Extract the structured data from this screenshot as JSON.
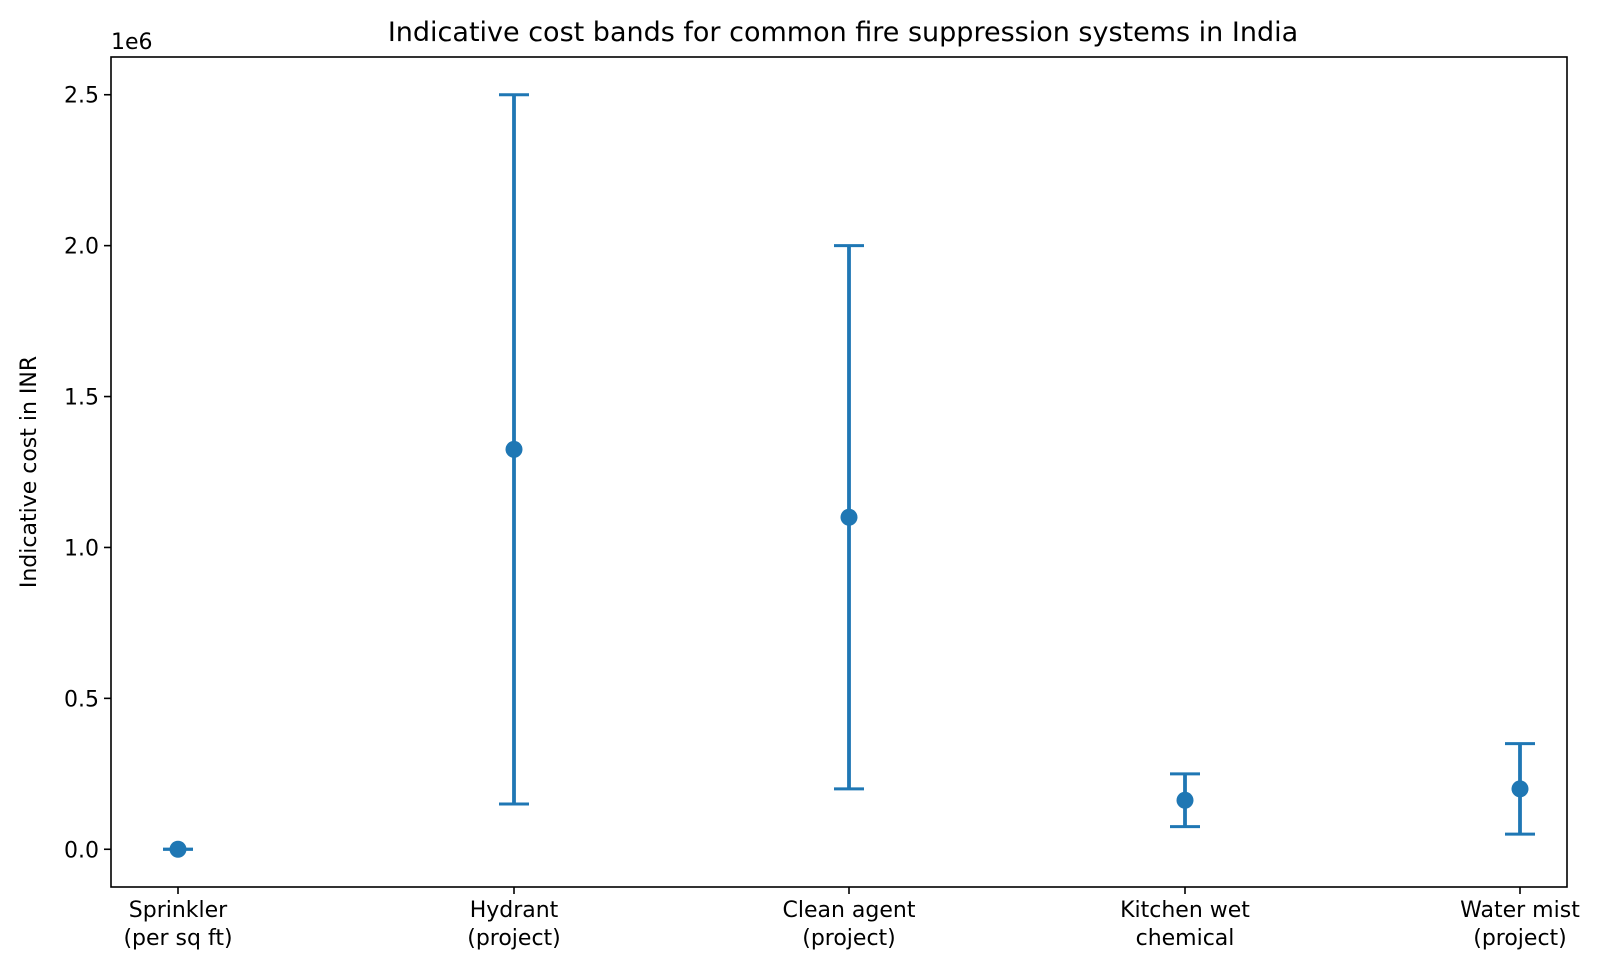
{
  "chart_data": {
    "type": "errorbar",
    "title": "Indicative cost bands for common fire suppression systems in India",
    "ylabel": "Indicative cost in INR",
    "xlabel": "",
    "y_offset_label": "1e6",
    "ylim": [
      -0.125,
      2.625
    ],
    "y_scale_factor": 1000000,
    "y_ticks": [
      0.0,
      0.5,
      1.0,
      1.5,
      2.0,
      2.5
    ],
    "y_tick_labels": [
      "0.0",
      "0.5",
      "1.0",
      "1.5",
      "2.0",
      "2.5"
    ],
    "grid": false,
    "color": "#1f77b4",
    "categories": [
      [
        "Sprinkler",
        "(per sq ft)"
      ],
      [
        "Hydrant",
        "(project)"
      ],
      [
        "Clean agent",
        "(project)"
      ],
      [
        "Kitchen wet",
        "chemical"
      ],
      [
        "Water mist",
        "(project)"
      ]
    ],
    "points": [
      {
        "center": 90,
        "low": 60,
        "high": 120
      },
      {
        "center": 1325000,
        "low": 150000,
        "high": 2500000
      },
      {
        "center": 1100000,
        "low": 200000,
        "high": 2000000
      },
      {
        "center": 162500,
        "low": 75000,
        "high": 250000
      },
      {
        "center": 200000,
        "low": 50000,
        "high": 350000
      }
    ]
  }
}
